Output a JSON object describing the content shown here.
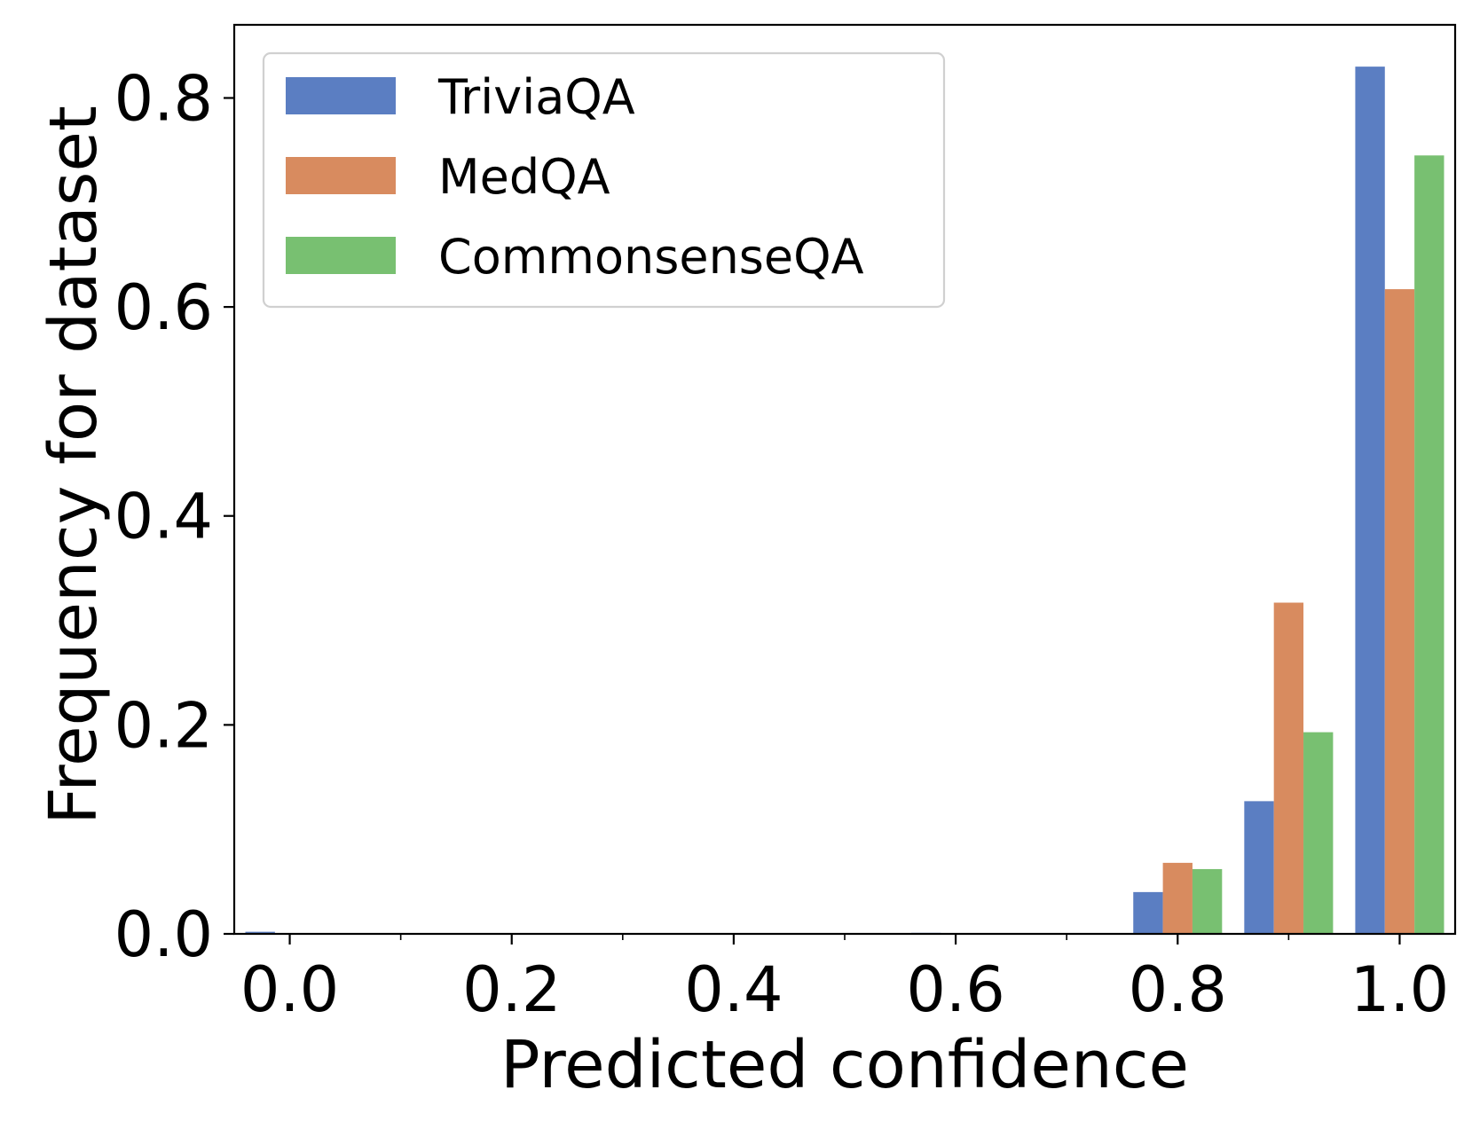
{
  "chart_data": {
    "type": "bar",
    "title": "",
    "xlabel": "Predicted confidence",
    "ylabel": "Frequency for dataset",
    "xlim": [
      -0.05,
      1.05
    ],
    "ylim": [
      0.0,
      0.87
    ],
    "xticks": [
      "0.0",
      "0.2",
      "0.4",
      "0.6",
      "0.8",
      "1.0"
    ],
    "xtick_values": [
      0.0,
      0.2,
      0.4,
      0.6,
      0.8,
      1.0
    ],
    "minor_xtick_values": [
      0.1,
      0.3,
      0.5,
      0.7,
      0.9
    ],
    "yticks": [
      "0.0",
      "0.2",
      "0.4",
      "0.6",
      "0.8"
    ],
    "ytick_values": [
      0.0,
      0.2,
      0.4,
      0.6,
      0.8
    ],
    "grid": false,
    "legend_position": "top-left",
    "bin_centers": [
      0.0,
      0.1,
      0.2,
      0.3,
      0.4,
      0.5,
      0.6,
      0.7,
      0.8,
      0.9,
      1.0
    ],
    "bar_group_width": 0.08,
    "series": [
      {
        "name": "TriviaQA",
        "color": "#5b7ec2",
        "values": [
          0.002,
          0.0,
          0.0,
          0.0,
          0.0,
          0.0,
          0.001,
          0.0,
          0.04,
          0.127,
          0.83
        ]
      },
      {
        "name": "MedQA",
        "color": "#d88b5f",
        "values": [
          0.0,
          0.0,
          0.0,
          0.0,
          0.0,
          0.0,
          0.0,
          0.0,
          0.068,
          0.317,
          0.617
        ]
      },
      {
        "name": "CommonsenseQA",
        "color": "#78c071",
        "values": [
          0.0,
          0.0,
          0.0,
          0.0,
          0.0,
          0.0,
          0.0,
          0.0,
          0.062,
          0.193,
          0.745
        ]
      }
    ]
  }
}
